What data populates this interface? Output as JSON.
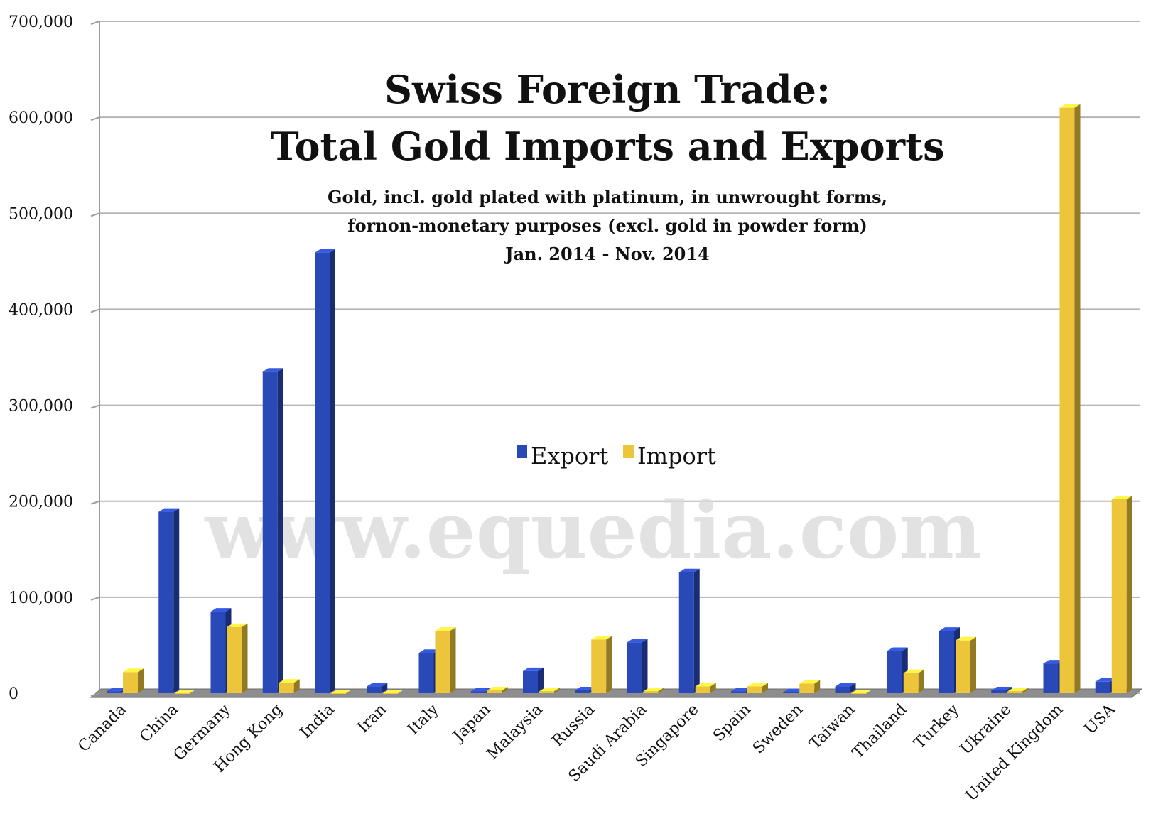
{
  "chart_data": {
    "type": "bar",
    "title": "Swiss Foreign Trade:",
    "title_line2": "Total Gold Imports and Exports",
    "subtitle_lines": [
      "Gold, incl. gold plated with platinum, in unwrought forms,",
      "fornon-monetary purposes (excl. gold in powder form)",
      "Jan. 2014 - Nov. 2014"
    ],
    "watermark": "www.equedia.com",
    "categories": [
      "Canada",
      "China",
      "Germany",
      "Hong Kong",
      "India",
      "Iran",
      "Italy",
      "Japan",
      "Malaysia",
      "Russia",
      "Saudi Arabia",
      "Singapore",
      "Spain",
      "Sweden",
      "Taiwan",
      "Thailand",
      "Turkey",
      "Ukraine",
      "United Kingdom",
      "USA"
    ],
    "series": [
      {
        "name": "Export",
        "color": "#2a49b8",
        "values": [
          2000,
          189000,
          85000,
          335000,
          459000,
          7000,
          42000,
          2000,
          23000,
          3000,
          53000,
          126000,
          2000,
          1000,
          7000,
          44000,
          65000,
          3000,
          31000,
          12000
        ]
      },
      {
        "name": "Import",
        "color": "#ecc53a",
        "values": [
          22000,
          0,
          69000,
          11000,
          0,
          0,
          65000,
          3000,
          2000,
          56000,
          2000,
          7000,
          7000,
          10000,
          0,
          21000,
          55000,
          2000,
          610000,
          202000
        ]
      }
    ],
    "y_ticks": [
      "0",
      "100,000",
      "200,000",
      "300,000",
      "400,000",
      "500,000",
      "600,000",
      "700,000"
    ],
    "ylim": [
      0,
      700000
    ],
    "xlabel": "",
    "ylabel": "",
    "grid": true,
    "legend_position": "center"
  }
}
